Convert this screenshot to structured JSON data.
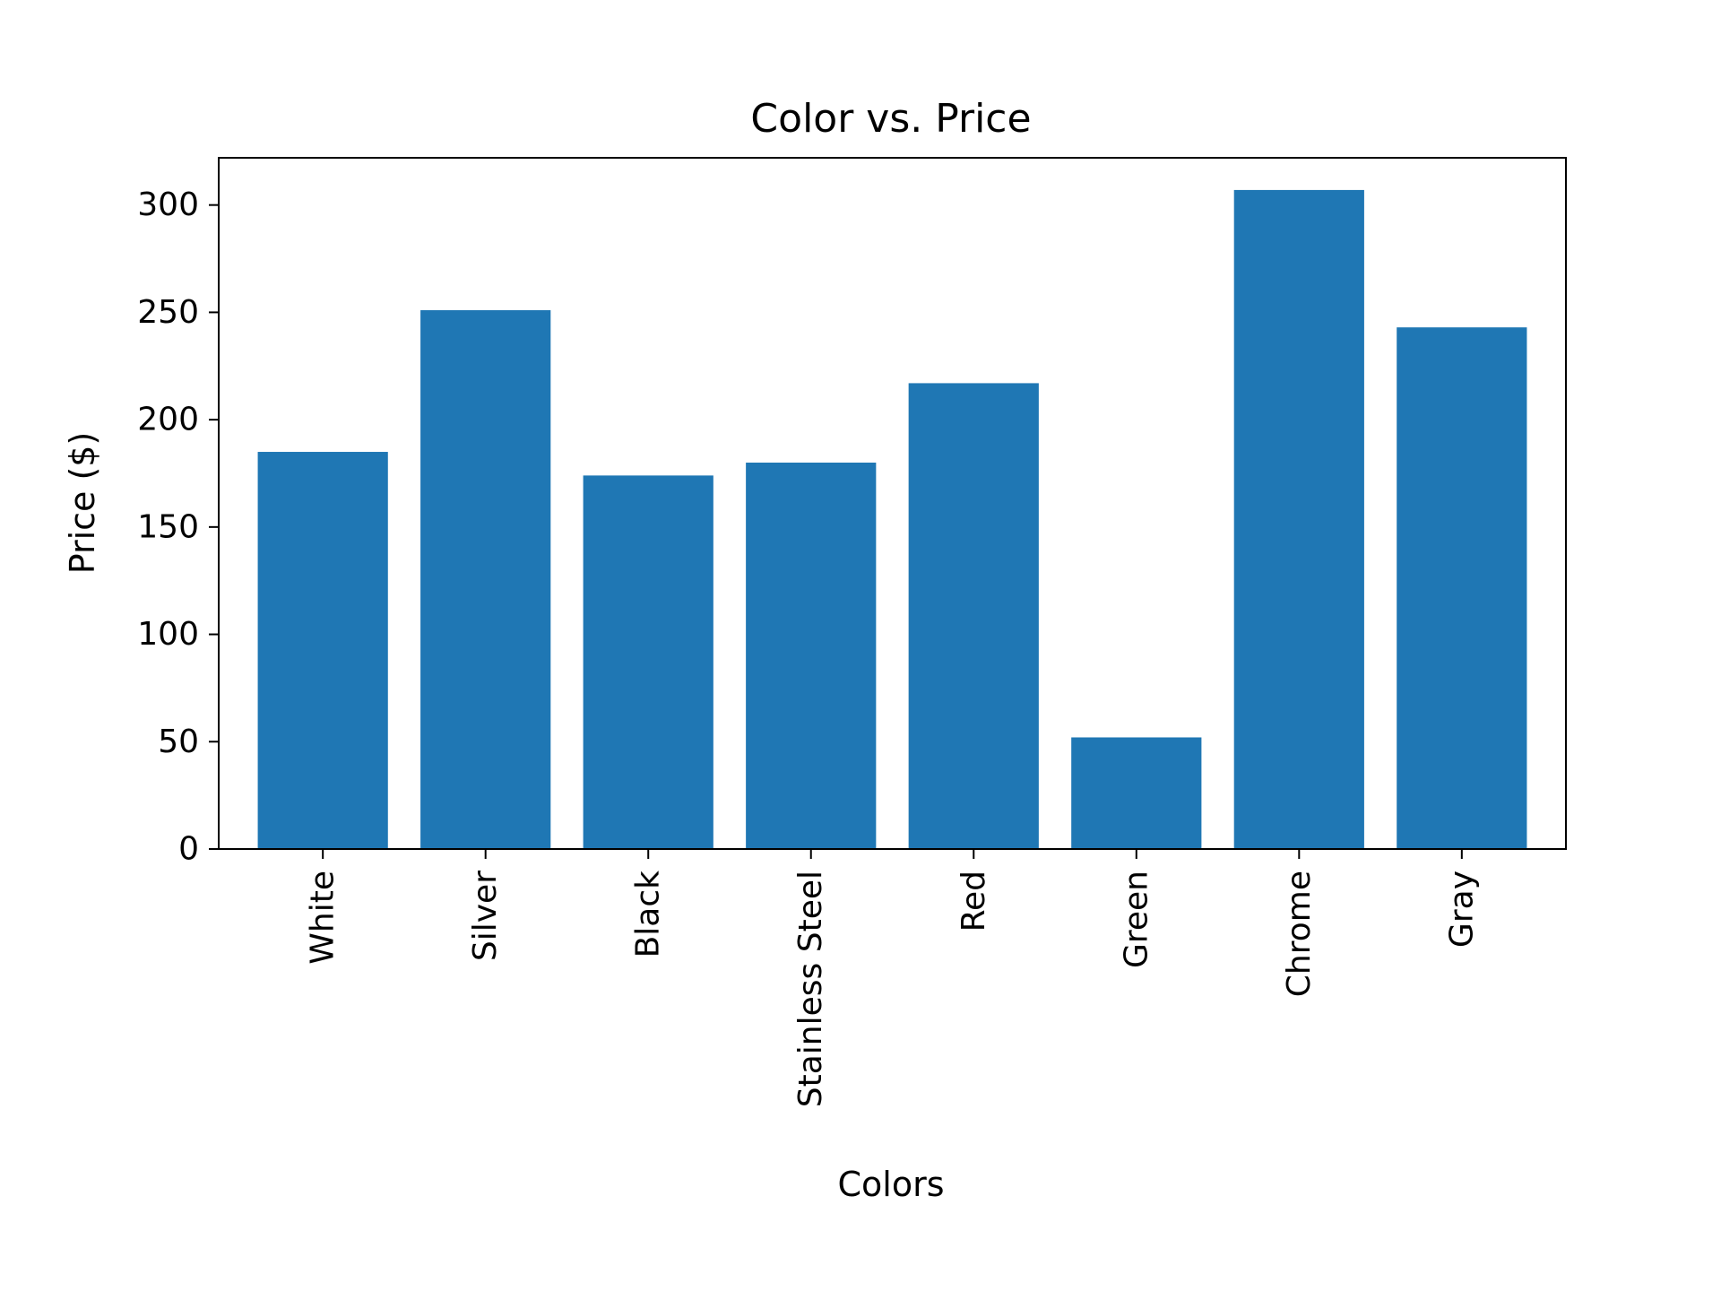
{
  "chart_data": {
    "type": "bar",
    "title": "Color vs. Price",
    "xlabel": "Colors",
    "ylabel": "Price ($)",
    "categories": [
      "White",
      "Silver",
      "Black",
      "Stainless Steel",
      "Red",
      "Green",
      "Chrome",
      "Gray"
    ],
    "values": [
      185,
      251,
      174,
      180,
      217,
      52,
      307,
      243
    ],
    "ylim": [
      0,
      322
    ],
    "yticks": [
      0,
      50,
      100,
      150,
      200,
      250,
      300
    ],
    "ytick_labels": [
      "0",
      "50",
      "100",
      "150",
      "200",
      "250",
      "300"
    ],
    "grid": false,
    "bar_color": "#1f77b4"
  }
}
